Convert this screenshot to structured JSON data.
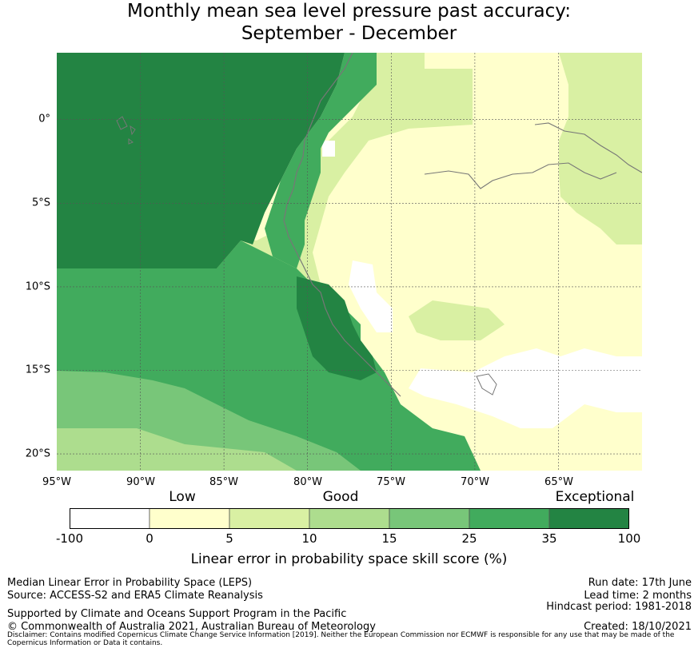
{
  "title_line1": "Monthly mean sea level pressure past accuracy:",
  "title_line2": "September - December",
  "map": {
    "lon_range": [
      -95,
      -60
    ],
    "lat_range": [
      -21,
      4
    ],
    "lat_ticks": [
      "0°",
      "5°S",
      "10°S",
      "15°S",
      "20°S"
    ],
    "lon_ticks": [
      "95°W",
      "90°W",
      "85°W",
      "80°W",
      "75°W",
      "70°W",
      "65°W"
    ],
    "gridlines": true
  },
  "colorbar": {
    "categories": [
      "Low",
      "Good",
      "Exceptional"
    ],
    "ticks": [
      "-100",
      "0",
      "5",
      "10",
      "15",
      "25",
      "35",
      "100"
    ],
    "colors": [
      "#ffffff",
      "#ffffcc",
      "#d9f0a3",
      "#addd8e",
      "#78c679",
      "#41ab5d",
      "#238443"
    ],
    "label": "Linear error in probability space skill score (%)"
  },
  "footer": {
    "line1": "Median Linear Error in Probability Space (LEPS)",
    "line2": "Source: ACCESS-S2 and ERA5 Climate Reanalysis",
    "line3": "Supported by Climate and Oceans Support Program in the Pacific",
    "line4": "© Commonwealth of Australia 2021, Australian Bureau of Meteorology",
    "run_date": "Run date: 17th June",
    "lead_time": "Lead time: 2 months",
    "hindcast": "Hindcast period: 1981-2018",
    "created": "Created: 18/10/2021",
    "disclaimer": "Disclaimer: Contains modified Copernicus Climate Change Service Information [2019]. Neither the European Commission nor ECMWF is responsible for any use that may be made of the Copernicus Information or Data it contains."
  }
}
